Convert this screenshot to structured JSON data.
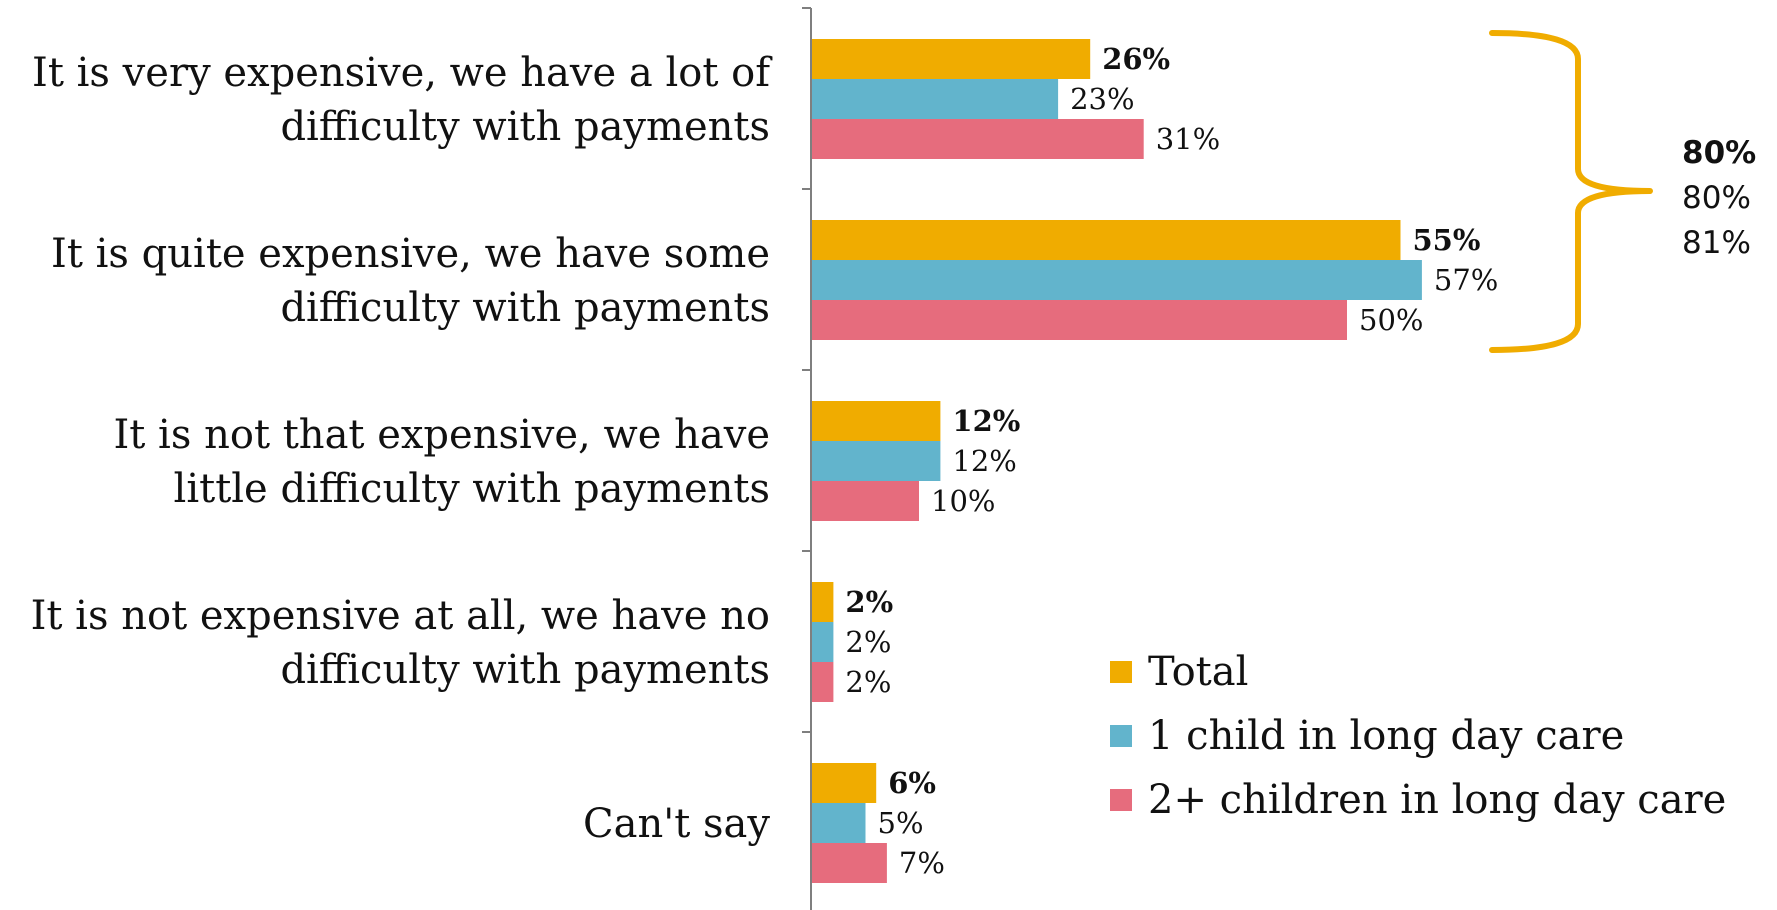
{
  "chart_data": {
    "type": "bar",
    "orientation": "horizontal",
    "title": "",
    "xlabel": "",
    "ylabel": "",
    "xlim": [
      0,
      60
    ],
    "grid": false,
    "legend_position": "bottom-right",
    "categories": [
      [
        "It is very expensive, we have a lot of",
        "difficulty with payments"
      ],
      [
        "It is quite expensive, we have some",
        "difficulty with payments"
      ],
      [
        "It is not that expensive, we have",
        "little difficulty with payments"
      ],
      [
        "It is not expensive at all, we have no",
        "difficulty with payments"
      ],
      [
        "Can't say"
      ]
    ],
    "series": [
      {
        "name": "Total",
        "color": "#F0AC00",
        "values": [
          26,
          55,
          12,
          2,
          6
        ],
        "labels": [
          "26%",
          "55%",
          "12%",
          "2%",
          "6%"
        ]
      },
      {
        "name": "1 child in long day care",
        "color": "#62B4CC",
        "values": [
          23,
          57,
          12,
          2,
          5
        ],
        "labels": [
          "23%",
          "57%",
          "12%",
          "2%",
          "5%"
        ]
      },
      {
        "name": "2+ children in long day care",
        "color": "#E66C7D",
        "values": [
          31,
          50,
          10,
          2,
          7
        ],
        "labels": [
          "31%",
          "50%",
          "10%",
          "2%",
          "7%"
        ]
      }
    ],
    "bracket": {
      "color": "#F0AC00",
      "spans_categories": [
        0,
        1
      ],
      "values": [
        80,
        80,
        81
      ],
      "labels": [
        "80%",
        "80%",
        "81%"
      ]
    }
  }
}
